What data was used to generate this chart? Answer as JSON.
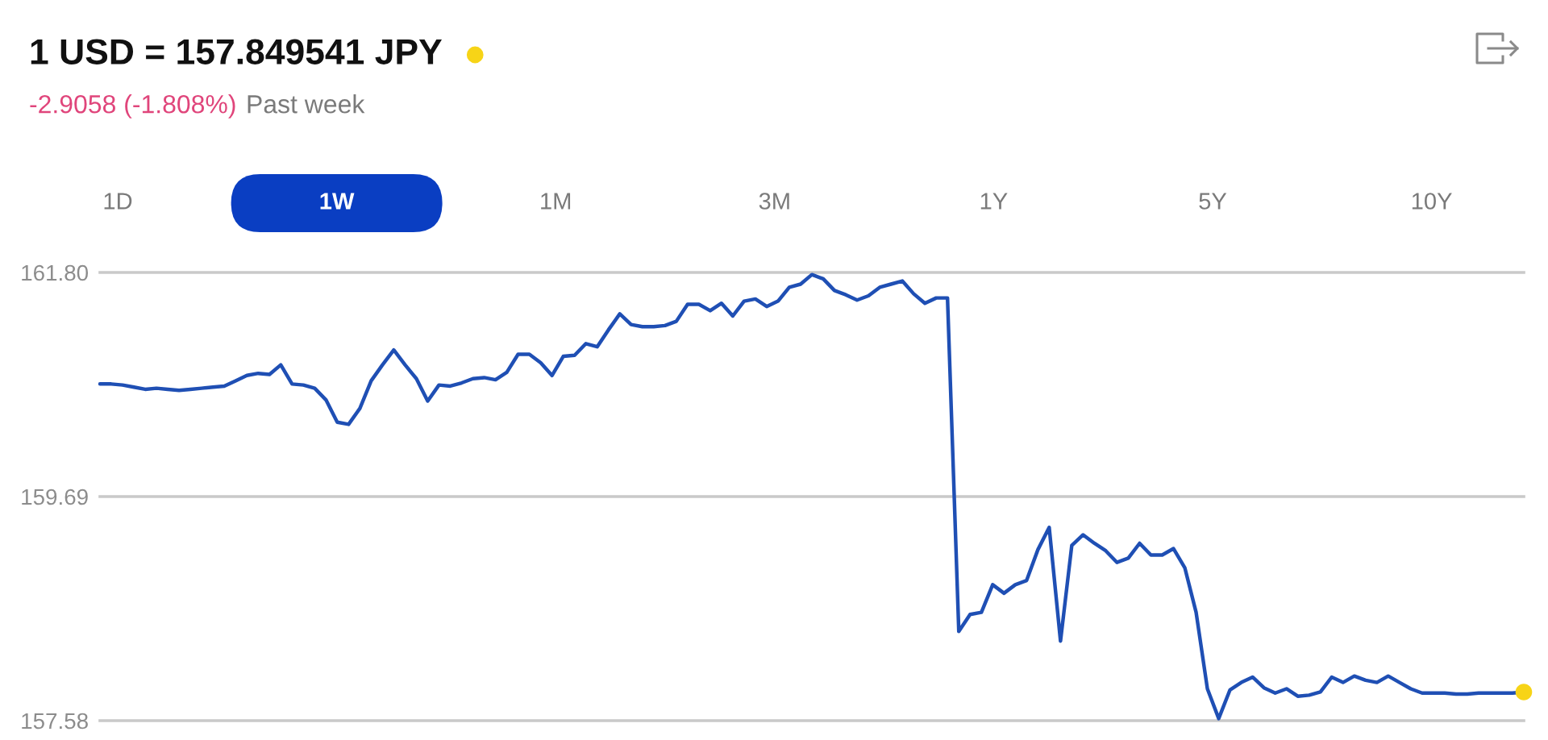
{
  "chart_data": {
    "type": "line",
    "title": "1 USD = 157.849541 JPY",
    "subtitle": "-2.9058 (-1.808%)",
    "annotations": [
      "Past week",
      "1D",
      "1W",
      "1M",
      "3M",
      "1Y",
      "5Y",
      "10Y"
    ],
    "categories": [
      null,
      null,
      null,
      null,
      null,
      null,
      null,
      null,
      null,
      null,
      null,
      null,
      null,
      null,
      null,
      null,
      null,
      null,
      null,
      null,
      null,
      null,
      null,
      null,
      null,
      null,
      null,
      null,
      null,
      null,
      null,
      null,
      null,
      null,
      null,
      null,
      null,
      null,
      null,
      null,
      null,
      null,
      null,
      null,
      null,
      null,
      null,
      null,
      null,
      null,
      null,
      null,
      null,
      null,
      null,
      null,
      null,
      null,
      null,
      null,
      null,
      null,
      null,
      null,
      null,
      null,
      null,
      null,
      null,
      null,
      null,
      null,
      null,
      null,
      null,
      null,
      null,
      null,
      null,
      null,
      null,
      null,
      null,
      null,
      null,
      null,
      null,
      null,
      null,
      null,
      null,
      null,
      null,
      null,
      null,
      null,
      null,
      null,
      null,
      null,
      null,
      null,
      null,
      null,
      null,
      null,
      null,
      null,
      null,
      null,
      null,
      null,
      null,
      null,
      null,
      null,
      null,
      null,
      null,
      null,
      null,
      null,
      null,
      null,
      null,
      null,
      null
    ],
    "series": [
      {
        "color": "#1f4fb4",
        "values": [
          160.75,
          160.75,
          160.74,
          160.72,
          160.7,
          160.71,
          160.7,
          160.69,
          160.7,
          160.71,
          160.72,
          160.73,
          160.78,
          160.83,
          160.85,
          160.84,
          160.93,
          160.75,
          160.74,
          160.71,
          160.6,
          160.39,
          160.37,
          160.52,
          160.78,
          160.93,
          161.07,
          160.93,
          160.8,
          160.59,
          160.74,
          160.73,
          160.76,
          160.8,
          160.81,
          160.79,
          160.86,
          161.03,
          161.03,
          160.95,
          160.83,
          161.01,
          161.02,
          161.13,
          161.1,
          161.26,
          161.41,
          161.31,
          161.29,
          161.29,
          161.3,
          161.34,
          161.5,
          161.5,
          161.44,
          161.51,
          161.39,
          161.53,
          161.55,
          161.48,
          161.53,
          161.66,
          161.69,
          161.78,
          161.74,
          161.63,
          161.59,
          161.54,
          161.58,
          161.66,
          161.69,
          161.72,
          161.6,
          161.51,
          161.56,
          161.56,
          158.42,
          158.58,
          158.6,
          158.86,
          158.78,
          158.86,
          158.9,
          159.19,
          159.4,
          158.33,
          159.23,
          159.33,
          159.25,
          159.18,
          159.07,
          159.11,
          159.25,
          159.14,
          159.14,
          159.2,
          159.02,
          158.6,
          157.88,
          157.6,
          157.87,
          157.94,
          157.99,
          157.89,
          157.84,
          157.88,
          157.81,
          157.82,
          157.85,
          157.99,
          157.94,
          158.0,
          157.96,
          157.94,
          158.0,
          157.94,
          157.88,
          157.84,
          157.84,
          157.84,
          157.83,
          157.83,
          157.84,
          157.84,
          157.84,
          157.84,
          157.85
        ]
      },
      {
        "type": "scatter",
        "color": "#f7d417",
        "values": [
          null,
          null,
          null,
          null,
          null,
          null,
          null,
          null,
          null,
          null,
          null,
          null,
          null,
          null,
          null,
          null,
          null,
          null,
          null,
          null,
          null,
          null,
          null,
          null,
          null,
          null,
          null,
          null,
          null,
          null,
          null,
          null,
          null,
          null,
          null,
          null,
          null,
          null,
          null,
          null,
          null,
          null,
          null,
          null,
          null,
          null,
          null,
          null,
          null,
          null,
          null,
          null,
          null,
          null,
          null,
          null,
          null,
          null,
          null,
          null,
          null,
          null,
          null,
          null,
          null,
          null,
          null,
          null,
          null,
          null,
          null,
          null,
          null,
          null,
          null,
          null,
          null,
          null,
          null,
          null,
          null,
          null,
          null,
          null,
          null,
          null,
          null,
          null,
          null,
          null,
          null,
          null,
          null,
          null,
          null,
          null,
          null,
          null,
          null,
          null,
          null,
          null,
          null,
          null,
          null,
          null,
          null,
          null,
          null,
          null,
          null,
          null,
          null,
          null,
          null,
          null,
          null,
          null,
          null,
          null,
          null,
          null,
          null,
          null,
          null,
          null,
          157.85
        ]
      }
    ],
    "ylim": [
      157.58,
      161.8
    ],
    "yticks": [
      157.58,
      159.69,
      {
        "value": 161.8,
        "label": "161.80"
      }
    ],
    "grid": "y",
    "tick_labels": "y"
  }
}
